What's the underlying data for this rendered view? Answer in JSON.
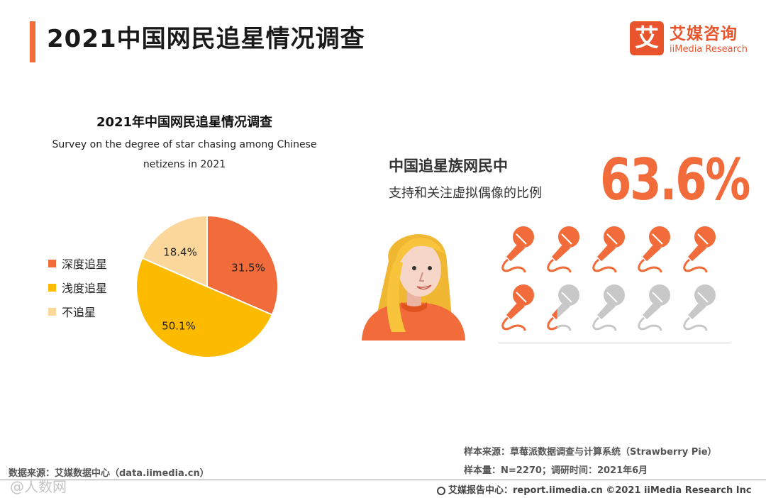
{
  "header": {
    "title": "2021中国网民追星情况调查",
    "logo_mark": "艾",
    "logo_cn": "艾媒咨询",
    "logo_en": "iiMedia Research"
  },
  "chart_data": {
    "type": "pie",
    "title": "2021年中国网民追星情况调查",
    "subtitle_line1": "Survey on the degree of star chasing among Chinese",
    "subtitle_line2": "netizens in 2021",
    "slices": [
      {
        "label": "深度追星",
        "value": 31.5,
        "display": "31.5%",
        "color": "#f26b3a"
      },
      {
        "label": "浅度追星",
        "value": 50.1,
        "display": "50.1%",
        "color": "#fdbb00"
      },
      {
        "label": "不追星",
        "value": 18.4,
        "display": "18.4%",
        "color": "#fbd79b"
      }
    ],
    "legend_position": "left"
  },
  "infographic": {
    "headline_line1": "中国追星族网民中",
    "headline_line2": "支持和关注虚拟偶像的比例",
    "stat": "63.6%",
    "stat_fraction": 0.636,
    "icon_total": 10,
    "icon": "microphone-icon",
    "active_color": "#f26b3a",
    "inactive_color": "#c8c8c8"
  },
  "footer": {
    "source_left": "数据来源：艾媒数据中心（data.iimedia.cn）",
    "source_right": "样本来源：草莓派数据调查与计算系统（Strawberry Pie）",
    "sample": "样本量：N=2270；调研时间：2021年6月",
    "report": "艾媒报告中心：report.iimedia.cn   ©2021  iiMedia Research  Inc",
    "watermark": "@人数网"
  }
}
